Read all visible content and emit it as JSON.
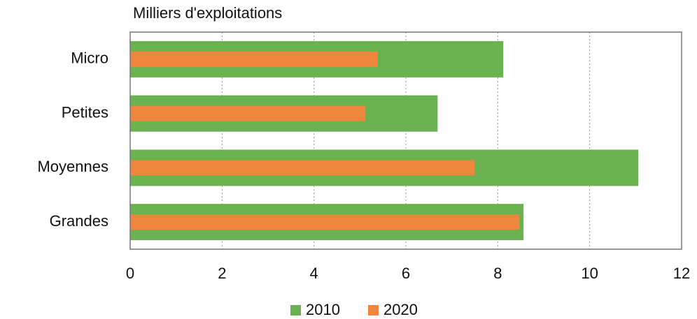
{
  "chart_data": {
    "type": "bar",
    "orientation": "horizontal",
    "title": "Milliers d'exploitations",
    "categories": [
      "Micro",
      "Petites",
      "Moyennes",
      "Grandes"
    ],
    "series": [
      {
        "name": "2010",
        "color": "#6ab150",
        "values": [
          8.12,
          6.69,
          11.06,
          8.56
        ]
      },
      {
        "name": "2020",
        "color": "#f0853e",
        "values": [
          5.39,
          5.12,
          7.5,
          8.47
        ]
      }
    ],
    "xlim": [
      0,
      12
    ],
    "xticks": [
      0,
      2,
      4,
      6,
      8,
      10,
      12
    ],
    "grid": true,
    "legend": "bottom"
  }
}
